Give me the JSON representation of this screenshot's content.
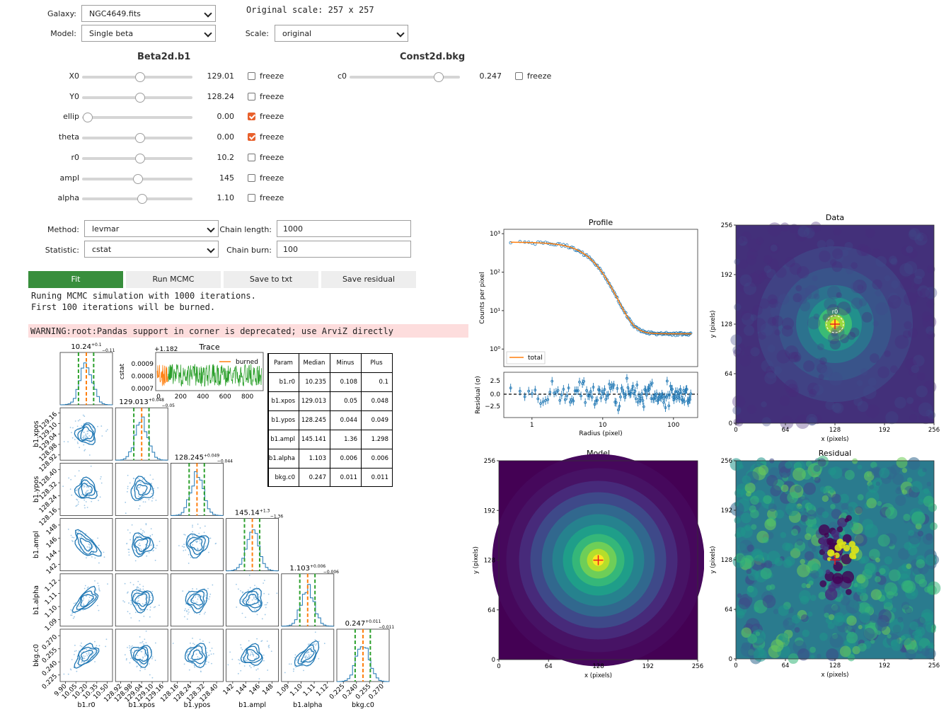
{
  "controls": {
    "galaxy_label": "Galaxy:",
    "galaxy_value": "NGC4649.fits",
    "model_label": "Model:",
    "model_value": "Single beta",
    "original_scale": "Original scale: 257 x 257",
    "scale_label": "Scale:",
    "scale_value": "original"
  },
  "beta_group": {
    "title": "Beta2d.b1",
    "params": [
      {
        "name": "X0",
        "value": "129.01",
        "pos": 0.5,
        "frozen": false
      },
      {
        "name": "Y0",
        "value": "128.24",
        "pos": 0.5,
        "frozen": false
      },
      {
        "name": "ellip",
        "value": "0.00",
        "pos": 0.0,
        "frozen": true
      },
      {
        "name": "theta",
        "value": "0.00",
        "pos": 0.5,
        "frozen": true
      },
      {
        "name": "r0",
        "value": "10.2",
        "pos": 0.5,
        "frozen": false
      },
      {
        "name": "ampl",
        "value": "145",
        "pos": 0.48,
        "frozen": false
      },
      {
        "name": "alpha",
        "value": "1.10",
        "pos": 0.52,
        "frozen": false
      }
    ]
  },
  "bkg_group": {
    "title": "Const2d.bkg",
    "params": [
      {
        "name": "c0",
        "value": "0.247",
        "pos": 0.8,
        "frozen": false
      }
    ]
  },
  "freeze_label": "freeze",
  "fit_options": {
    "method_label": "Method:",
    "method_value": "levmar",
    "statistic_label": "Statistic:",
    "statistic_value": "cstat",
    "chain_length_label": "Chain length:",
    "chain_length_value": "1000",
    "chain_burn_label": "Chain burn:",
    "chain_burn_value": "100"
  },
  "buttons": {
    "fit": "Fit",
    "run_mcmc": "Run MCMC",
    "save_txt": "Save to txt",
    "save_residual": "Save residual"
  },
  "output": {
    "line1": "Runing MCMC simulation with 1000 iterations.",
    "line2": "First 100 iterations will be burned.",
    "warning": "WARNING:root:Pandas support in corner is deprecated; use ArviZ directly"
  },
  "trace": {
    "title": "Trace",
    "offset": "+1.182",
    "ylabel": "cstat",
    "legend": "burned",
    "yticks": [
      "0.0009",
      "0.0008",
      "0.0007"
    ],
    "xticks": [
      "0",
      "200",
      "400",
      "600",
      "800"
    ]
  },
  "results_table": {
    "headers": [
      "Param",
      "Median",
      "Minus",
      "Plus"
    ],
    "rows": [
      [
        "b1.r0",
        "10.235",
        "0.108",
        "0.1"
      ],
      [
        "b1.xpos",
        "129.013",
        "0.05",
        "0.048"
      ],
      [
        "b1.ypos",
        "128.245",
        "0.044",
        "0.049"
      ],
      [
        "b1.ampl",
        "145.141",
        "1.36",
        "1.298"
      ],
      [
        "b1.alpha",
        "1.103",
        "0.006",
        "0.006"
      ],
      [
        "bkg.c0",
        "0.247",
        "0.011",
        "0.011"
      ]
    ]
  },
  "corner": {
    "titles": [
      {
        "main": "10.24",
        "plus": "+0.1",
        "minus": "−0.11"
      },
      {
        "main": "129.013",
        "plus": "+0.048",
        "minus": "−0.05"
      },
      {
        "main": "128.245",
        "plus": "+0.049",
        "minus": "−0.044"
      },
      {
        "main": "145.14",
        "plus": "+1.3",
        "minus": "−1.36"
      },
      {
        "main": "1.103",
        "plus": "+0.006",
        "minus": "−0.006"
      },
      {
        "main": "0.247",
        "plus": "+0.011",
        "minus": "−0.011"
      }
    ],
    "xlabels": [
      "b1.r0",
      "b1.xpos",
      "b1.ypos",
      "b1.ampl",
      "b1.alpha",
      "bkg.c0"
    ],
    "ylabels": [
      "b1.xpos",
      "b1.ypos",
      "b1.ampl",
      "b1.alpha",
      "bkg.c0"
    ],
    "xticks": [
      [
        "9.90",
        "10.05",
        "10.20",
        "10.35",
        "10.50"
      ],
      [
        "128.92",
        "128.98",
        "129.04",
        "129.10",
        "129.16"
      ],
      [
        "128.16",
        "128.24",
        "128.32",
        "128.40"
      ],
      [
        "142",
        "144",
        "146",
        "148"
      ],
      [
        "1.09",
        "1.10",
        "1.11",
        "1.12"
      ],
      [
        "0.225",
        "0.240",
        "0.255",
        "0.270"
      ]
    ],
    "yticks": [
      [
        "129.16",
        "129.10",
        "129.04",
        "128.98",
        "128.92"
      ],
      [
        "128.40",
        "128.32",
        "128.24",
        "128.16"
      ],
      [
        "148",
        "146",
        "144",
        "142"
      ],
      [
        "1.12",
        "1.11",
        "1.10",
        "1.09"
      ],
      [
        "0.270",
        "0.255",
        "0.240",
        "0.225"
      ]
    ]
  },
  "profile_plot": {
    "title": "Profile",
    "ylabel": "Counts per pixel",
    "yticks": [
      "10³",
      "10²",
      "10¹",
      "10⁰"
    ],
    "legend": "total",
    "residual_ylabel": "Residual (σ)",
    "residual_yticks": [
      "2.5",
      "0.0",
      "−2.5"
    ],
    "xlabel": "Radius (pixel)",
    "xticks": [
      "1",
      "10",
      "100"
    ]
  },
  "images": {
    "data_title": "Data",
    "model_title": "Model",
    "residual_title": "Residual",
    "xlabel": "x (pixels)",
    "ylabel": "y (pixels)",
    "ticks": [
      "0",
      "64",
      "128",
      "192",
      "256"
    ],
    "r0_label": "r0"
  }
}
